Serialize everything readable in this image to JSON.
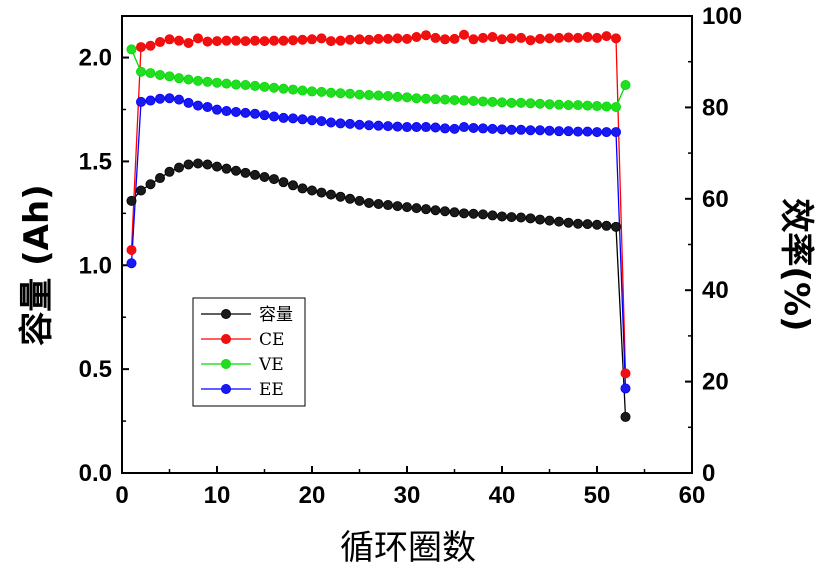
{
  "chart_data": {
    "type": "line",
    "xlabel": "循环圈数",
    "ylabel_left": "容量 (Ah)",
    "ylabel_right": "效率(%)",
    "xlim": [
      0,
      60
    ],
    "ylim_left": [
      0,
      2.2
    ],
    "ylim_right": [
      0,
      100
    ],
    "x_ticks": [
      "0",
      "10",
      "20",
      "30",
      "40",
      "50",
      "60"
    ],
    "y_left_ticks": [
      "0.0",
      "0.5",
      "1.0",
      "1.5",
      "2.0"
    ],
    "y_right_ticks": [
      "0",
      "20",
      "40",
      "60",
      "80",
      "100"
    ],
    "grid": false,
    "legend_position": "center-left",
    "series": [
      {
        "name": "容量",
        "axis": "left",
        "color": "#000000",
        "marker_color": "#1a1a1a",
        "x": [
          1,
          2,
          3,
          4,
          5,
          6,
          7,
          8,
          9,
          10,
          11,
          12,
          13,
          14,
          15,
          16,
          17,
          18,
          19,
          20,
          21,
          22,
          23,
          24,
          25,
          26,
          27,
          28,
          29,
          30,
          31,
          32,
          33,
          34,
          35,
          36,
          37,
          38,
          39,
          40,
          41,
          42,
          43,
          44,
          45,
          46,
          47,
          48,
          49,
          50,
          51,
          52,
          53
        ],
        "values": [
          1.31,
          1.36,
          1.39,
          1.42,
          1.45,
          1.47,
          1.485,
          1.49,
          1.485,
          1.475,
          1.465,
          1.455,
          1.445,
          1.435,
          1.425,
          1.415,
          1.4,
          1.385,
          1.37,
          1.36,
          1.35,
          1.34,
          1.33,
          1.32,
          1.31,
          1.3,
          1.295,
          1.29,
          1.285,
          1.28,
          1.275,
          1.27,
          1.265,
          1.26,
          1.255,
          1.25,
          1.248,
          1.245,
          1.24,
          1.235,
          1.232,
          1.23,
          1.226,
          1.22,
          1.215,
          1.21,
          1.205,
          1.2,
          1.198,
          1.195,
          1.19,
          1.185,
          0.27
        ]
      },
      {
        "name": "CE",
        "axis": "right",
        "color": "#ff0000",
        "marker_color": "#ee1111",
        "x": [
          1,
          2,
          3,
          4,
          5,
          6,
          7,
          8,
          9,
          10,
          11,
          12,
          13,
          14,
          15,
          16,
          17,
          18,
          19,
          20,
          21,
          22,
          23,
          24,
          25,
          26,
          27,
          28,
          29,
          30,
          31,
          32,
          33,
          34,
          35,
          36,
          37,
          38,
          39,
          40,
          41,
          42,
          43,
          44,
          45,
          46,
          47,
          48,
          49,
          50,
          51,
          52,
          53
        ],
        "values": [
          48.8,
          93.2,
          93.5,
          94.3,
          94.9,
          94.6,
          94.1,
          95.1,
          94.4,
          94.5,
          94.6,
          94.6,
          94.5,
          94.6,
          94.5,
          94.6,
          94.6,
          94.7,
          94.8,
          94.9,
          95.1,
          94.5,
          94.6,
          94.8,
          94.9,
          94.8,
          95.0,
          95.0,
          95.1,
          95.0,
          95.4,
          95.8,
          95.2,
          94.9,
          95.0,
          95.9,
          94.9,
          95.2,
          95.4,
          94.9,
          95.1,
          95.2,
          94.7,
          95.0,
          95.1,
          95.2,
          95.3,
          95.2,
          95.4,
          95.2,
          95.6,
          95.1,
          21.8
        ]
      },
      {
        "name": "VE",
        "axis": "right",
        "color": "#00dd00",
        "marker_color": "#22dd22",
        "x": [
          1,
          2,
          3,
          4,
          5,
          6,
          7,
          8,
          9,
          10,
          11,
          12,
          13,
          14,
          15,
          16,
          17,
          18,
          19,
          20,
          21,
          22,
          23,
          24,
          25,
          26,
          27,
          28,
          29,
          30,
          31,
          32,
          33,
          34,
          35,
          36,
          37,
          38,
          39,
          40,
          41,
          42,
          43,
          44,
          45,
          46,
          47,
          48,
          49,
          50,
          51,
          52,
          53
        ],
        "values": [
          92.7,
          87.8,
          87.5,
          87.1,
          86.8,
          86.4,
          86.1,
          85.8,
          85.6,
          85.4,
          85.2,
          85.0,
          84.9,
          84.7,
          84.5,
          84.3,
          84.1,
          83.9,
          83.7,
          83.5,
          83.4,
          83.2,
          83.1,
          83.0,
          82.8,
          82.7,
          82.6,
          82.5,
          82.3,
          82.2,
          82.0,
          81.9,
          81.8,
          81.7,
          81.6,
          81.5,
          81.4,
          81.3,
          81.2,
          81.1,
          81.0,
          81.0,
          80.9,
          80.8,
          80.7,
          80.6,
          80.5,
          80.5,
          80.4,
          80.3,
          80.2,
          80.1,
          84.9
        ]
      },
      {
        "name": "EE",
        "axis": "right",
        "color": "#0000ff",
        "marker_color": "#1a1aee",
        "x": [
          1,
          2,
          3,
          4,
          5,
          6,
          7,
          8,
          9,
          10,
          11,
          12,
          13,
          14,
          15,
          16,
          17,
          18,
          19,
          20,
          21,
          22,
          23,
          24,
          25,
          26,
          27,
          28,
          29,
          30,
          31,
          32,
          33,
          34,
          35,
          36,
          37,
          38,
          39,
          40,
          41,
          42,
          43,
          44,
          45,
          46,
          47,
          48,
          49,
          50,
          51,
          52,
          53
        ],
        "values": [
          45.9,
          81.2,
          81.5,
          81.9,
          82.0,
          81.7,
          81.0,
          80.4,
          80.1,
          79.5,
          79.2,
          79.0,
          78.8,
          78.6,
          78.3,
          78.0,
          77.7,
          77.6,
          77.4,
          77.2,
          77.0,
          76.7,
          76.5,
          76.4,
          76.2,
          76.1,
          76.0,
          75.9,
          75.8,
          75.7,
          75.7,
          75.7,
          75.6,
          75.4,
          75.3,
          75.7,
          75.5,
          75.4,
          75.3,
          75.2,
          75.1,
          75.1,
          75.0,
          75.0,
          74.9,
          74.8,
          74.8,
          74.7,
          74.7,
          74.6,
          74.6,
          74.6,
          18.5
        ]
      }
    ]
  }
}
